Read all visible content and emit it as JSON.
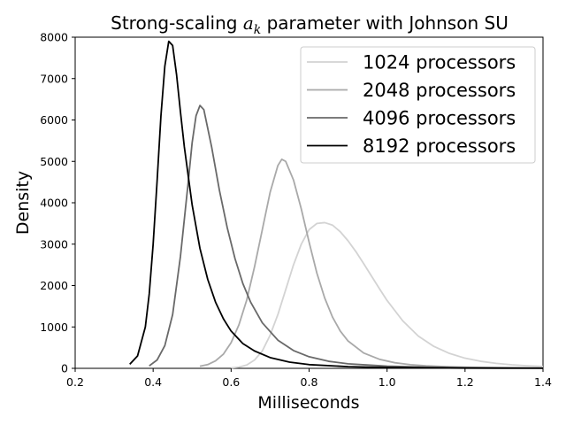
{
  "chart_data": {
    "type": "line",
    "title": {
      "prefix": "Strong-scaling ",
      "symbol": "a",
      "subscript": "k",
      "suffix": " parameter with Johnson SU"
    },
    "xlabel": "Milliseconds",
    "ylabel": "Density",
    "xlim": [
      0.2,
      1.4
    ],
    "ylim": [
      0,
      8000
    ],
    "xticks": [
      0.2,
      0.4,
      0.6,
      0.8,
      1.0,
      1.2,
      1.4
    ],
    "xtick_labels": [
      "0.2",
      "0.4",
      "0.6",
      "0.8",
      "1.0",
      "1.2",
      "1.4"
    ],
    "yticks": [
      0,
      1000,
      2000,
      3000,
      4000,
      5000,
      6000,
      7000,
      8000
    ],
    "ytick_labels": [
      "0",
      "1000",
      "2000",
      "3000",
      "4000",
      "5000",
      "6000",
      "7000",
      "8000"
    ],
    "grid": false,
    "legend_position": "top-right",
    "series": [
      {
        "name": "1024 processors",
        "color": "#d3d3d3",
        "x": [
          0.6,
          0.62,
          0.64,
          0.66,
          0.68,
          0.7,
          0.72,
          0.74,
          0.76,
          0.78,
          0.8,
          0.82,
          0.84,
          0.86,
          0.88,
          0.9,
          0.92,
          0.94,
          0.96,
          0.98,
          1.0,
          1.04,
          1.08,
          1.12,
          1.16,
          1.2,
          1.24,
          1.28,
          1.32,
          1.36,
          1.4
        ],
        "y": [
          10,
          30,
          80,
          200,
          420,
          800,
          1300,
          1900,
          2500,
          3000,
          3350,
          3500,
          3520,
          3460,
          3300,
          3080,
          2820,
          2530,
          2230,
          1930,
          1640,
          1150,
          780,
          530,
          360,
          245,
          170,
          120,
          85,
          62,
          45
        ]
      },
      {
        "name": "2048 processors",
        "color": "#a9a9a9",
        "x": [
          0.52,
          0.54,
          0.56,
          0.58,
          0.6,
          0.62,
          0.64,
          0.66,
          0.68,
          0.7,
          0.72,
          0.73,
          0.74,
          0.76,
          0.78,
          0.8,
          0.82,
          0.84,
          0.86,
          0.88,
          0.9,
          0.94,
          0.98,
          1.02,
          1.06,
          1.1,
          1.16,
          1.22,
          1.3,
          1.4
        ],
        "y": [
          50,
          90,
          180,
          340,
          620,
          1050,
          1650,
          2450,
          3350,
          4250,
          4900,
          5050,
          5000,
          4550,
          3850,
          3050,
          2300,
          1700,
          1240,
          900,
          660,
          370,
          220,
          135,
          88,
          60,
          37,
          24,
          15,
          9
        ]
      },
      {
        "name": "4096 processors",
        "color": "#696969",
        "x": [
          0.39,
          0.41,
          0.43,
          0.45,
          0.47,
          0.49,
          0.5,
          0.51,
          0.52,
          0.53,
          0.55,
          0.57,
          0.59,
          0.61,
          0.63,
          0.65,
          0.68,
          0.72,
          0.76,
          0.8,
          0.85,
          0.9,
          1.0,
          1.1,
          1.2,
          1.3,
          1.4
        ],
        "y": [
          60,
          200,
          550,
          1300,
          2700,
          4500,
          5450,
          6100,
          6350,
          6250,
          5350,
          4300,
          3400,
          2650,
          2050,
          1600,
          1100,
          680,
          430,
          280,
          170,
          110,
          52,
          28,
          16,
          10,
          6
        ]
      },
      {
        "name": "8192 processors",
        "color": "#000000",
        "x": [
          0.34,
          0.36,
          0.38,
          0.39,
          0.4,
          0.41,
          0.42,
          0.43,
          0.44,
          0.45,
          0.46,
          0.47,
          0.48,
          0.5,
          0.52,
          0.54,
          0.56,
          0.58,
          0.6,
          0.63,
          0.66,
          0.7,
          0.75,
          0.8,
          0.9,
          1.0,
          1.1,
          1.2,
          1.3,
          1.4
        ],
        "y": [
          100,
          300,
          1000,
          1800,
          3000,
          4500,
          6100,
          7300,
          7900,
          7800,
          7100,
          6200,
          5350,
          3950,
          2900,
          2150,
          1600,
          1200,
          900,
          600,
          420,
          260,
          150,
          90,
          40,
          20,
          12,
          7,
          4,
          3
        ]
      }
    ]
  }
}
